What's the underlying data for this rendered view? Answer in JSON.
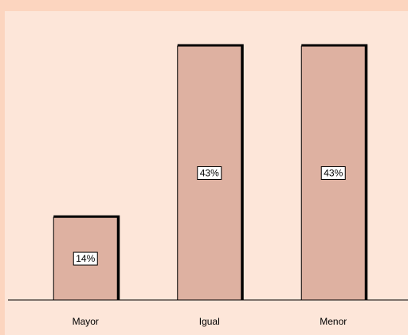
{
  "chart_data": {
    "type": "bar",
    "categories": [
      "Mayor",
      "Igual",
      "Menor"
    ],
    "values": [
      14,
      43,
      43
    ],
    "value_labels": [
      "14%",
      "43%",
      "43%"
    ],
    "color": "#deb1a1"
  }
}
